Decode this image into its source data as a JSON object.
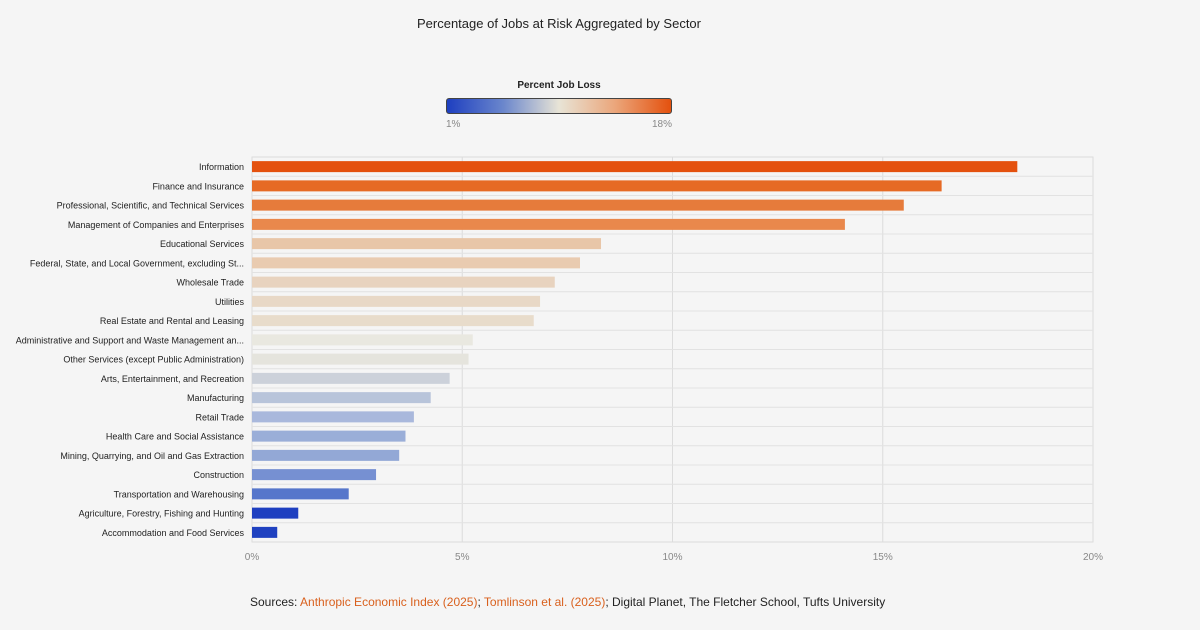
{
  "chart_data": {
    "type": "bar",
    "orientation": "horizontal",
    "title": "Percentage of Jobs at Risk Aggregated by Sector",
    "legend": {
      "title": "Percent Job Loss",
      "min_label": "1%",
      "max_label": "18%",
      "min": 1,
      "max": 18,
      "colors": [
        "#1e3fc0",
        "#6a86cc",
        "#e8e4d6",
        "#eba67b",
        "#e4510e"
      ]
    },
    "xlim": [
      0,
      20
    ],
    "x_ticks": [
      0,
      5,
      10,
      15,
      20
    ],
    "x_tick_labels": [
      "0%",
      "5%",
      "10%",
      "15%",
      "20%"
    ],
    "grid": true,
    "categories": [
      "Information",
      "Finance and Insurance",
      "Professional, Scientific, and Technical Services",
      "Management of Companies and Enterprises",
      "Educational Services",
      "Federal, State, and Local Government, excluding St...",
      "Wholesale Trade",
      "Utilities",
      "Real Estate and Rental and Leasing",
      "Administrative and Support and Waste Management an...",
      "Other Services (except Public Administration)",
      "Arts, Entertainment, and Recreation",
      "Manufacturing",
      "Retail Trade",
      "Health Care and Social Assistance",
      "Mining, Quarrying, and Oil and Gas Extraction",
      "Construction",
      "Transportation and Warehousing",
      "Agriculture, Forestry, Fishing and Hunting",
      "Accommodation and Food Services"
    ],
    "values": [
      18.2,
      16.4,
      15.5,
      14.1,
      8.3,
      7.8,
      7.2,
      6.85,
      6.7,
      5.25,
      5.15,
      4.7,
      4.25,
      3.85,
      3.65,
      3.5,
      2.95,
      2.3,
      1.1,
      0.6
    ],
    "colors": [
      "#e4510e",
      "#e66a24",
      "#e67b3b",
      "#e9884c",
      "#e8c6a8",
      "#e9cbb0",
      "#e8d3bf",
      "#e8d8c6",
      "#e8dccb",
      "#e9e8e0",
      "#e5e4dd",
      "#ccd1da",
      "#b8c4da",
      "#a9b8dc",
      "#9aaed8",
      "#93a8d6",
      "#7690d2",
      "#5676cb",
      "#1e3fc0",
      "#1f41c0"
    ]
  },
  "footer": {
    "prefix": "Sources: ",
    "link1": "Anthropic Economic Index (2025)",
    "sep": "; ",
    "link2": "Tomlinson et al. (2025)",
    "suffix": "; Digital Planet, The Fletcher School, Tufts University"
  }
}
